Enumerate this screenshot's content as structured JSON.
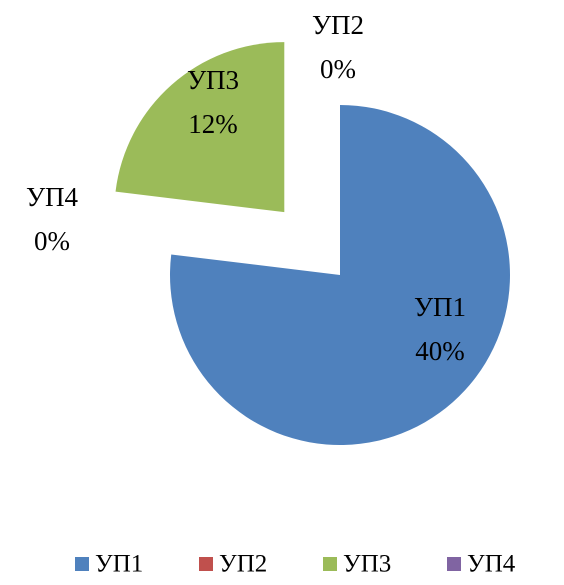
{
  "chart_data": {
    "type": "pie",
    "categories": [
      "УП1",
      "УП2",
      "УП3",
      "УП4"
    ],
    "values": [
      40,
      0,
      12,
      0
    ],
    "value_labels": [
      "40%",
      "0%",
      "12%",
      "0%"
    ],
    "colors": [
      "#4f81bd",
      "#c0504d",
      "#9bbb59",
      "#8064a2"
    ],
    "legend": "bottom"
  }
}
